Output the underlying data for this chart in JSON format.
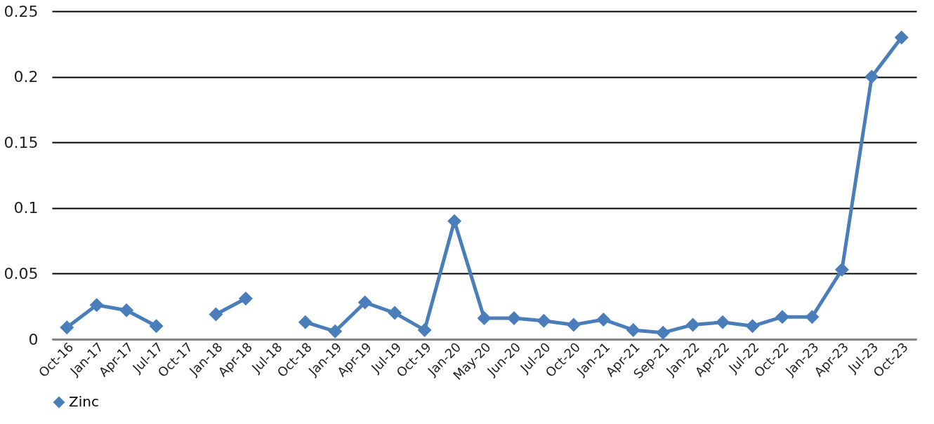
{
  "chart_data": {
    "type": "line",
    "categories": [
      "Oct-16",
      "Jan-17",
      "Apr-17",
      "Jul-17",
      "Oct-17",
      "Jan-18",
      "Apr-18",
      "Jul-18",
      "Oct-18",
      "Jan-19",
      "Apr-19",
      "Jul-19",
      "Oct-19",
      "Jan-20",
      "May-20",
      "Jun-20",
      "Jul-20",
      "Oct-20",
      "Jan-21",
      "Apr-21",
      "Sep-21",
      "Jan-22",
      "Apr-22",
      "Jul-22",
      "Oct-22",
      "Jan-23",
      "Apr-23",
      "Jul-23",
      "Oct-23"
    ],
    "series": [
      {
        "name": "Zinc",
        "color": "#4a7ebb",
        "values": [
          0.009,
          0.026,
          0.022,
          0.01,
          null,
          0.019,
          0.031,
          null,
          0.013,
          0.006,
          0.028,
          0.02,
          0.007,
          0.09,
          0.016,
          0.016,
          0.014,
          0.011,
          0.015,
          0.007,
          0.005,
          0.011,
          0.013,
          0.01,
          0.017,
          0.017,
          0.053,
          0.2,
          0.23
        ]
      }
    ],
    "ylim": [
      0,
      0.25
    ],
    "yticks": [
      0,
      0.05,
      0.1,
      0.15,
      0.2,
      0.25
    ],
    "grid": "y",
    "legend": "bottom",
    "marker": "diamond",
    "line_style": "solid"
  }
}
